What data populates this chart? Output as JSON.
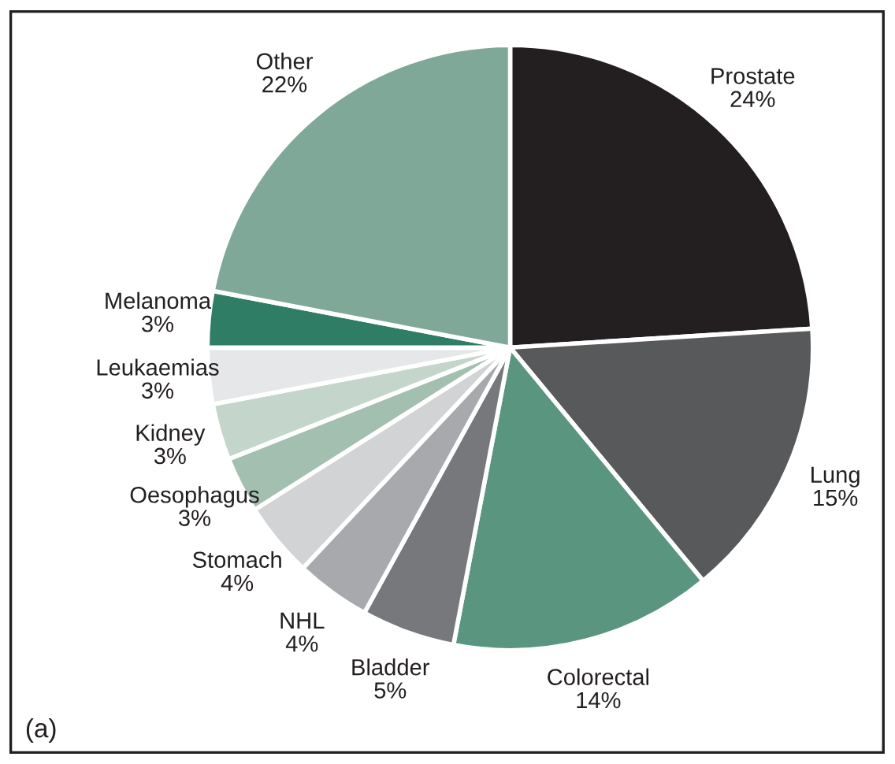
{
  "chart_data": {
    "type": "pie",
    "categories": [
      "Prostate",
      "Lung",
      "Colorectal",
      "Bladder",
      "NHL",
      "Stomach",
      "Oesophagus",
      "Kidney",
      "Leukaemias",
      "Melanoma",
      "Other"
    ],
    "values": [
      24,
      15,
      14,
      5,
      4,
      4,
      3,
      3,
      3,
      3,
      22
    ],
    "value_labels": [
      "24%",
      "15%",
      "14%",
      "5%",
      "4%",
      "4%",
      "3%",
      "3%",
      "3%",
      "3%",
      "22%"
    ],
    "colors": [
      "#231f20",
      "#58595b",
      "#5a9580",
      "#77787b",
      "#a7a9ac",
      "#d1d3d4",
      "#a3bfb0",
      "#c4d6cb",
      "#e6e7e8",
      "#2e7d64",
      "#80a898"
    ],
    "annotations": [
      "(a)"
    ],
    "legend": false
  }
}
